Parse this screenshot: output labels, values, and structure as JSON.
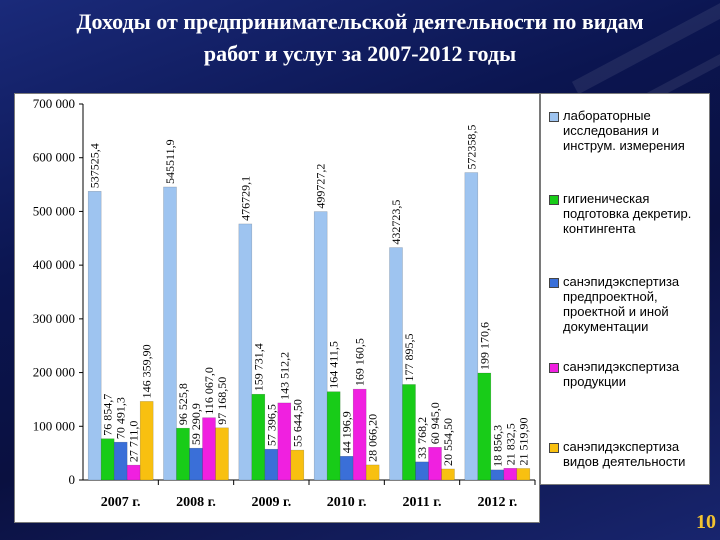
{
  "title_lines": [
    "Доходы от предпринимательской деятельности по видам",
    "работ и услуг за 2007-2012 годы"
  ],
  "page_number": "10",
  "chart_data": {
    "type": "bar",
    "categories": [
      "2007 г.",
      "2008 г.",
      "2009 г.",
      "2010 г.",
      "2011 г.",
      "2012 г."
    ],
    "ylim": [
      0,
      700000
    ],
    "yticks": [
      0,
      100000,
      200000,
      300000,
      400000,
      500000,
      600000,
      700000
    ],
    "ytick_labels": [
      "0",
      "100 000",
      "200 000",
      "300 000",
      "400 000",
      "500 000",
      "600 000",
      "700 000"
    ],
    "grid": false,
    "legend_position": "right",
    "series": [
      {
        "name": "лабораторные исследования и инструм. измерения",
        "color": "#9ec4f0",
        "values": [
          537525.4,
          545511.9,
          476729.1,
          499727.2,
          432723.5,
          572358.5
        ],
        "labels": [
          "537525,4",
          "545511,9",
          "476729,1",
          "499727,2",
          "432723,5",
          "572358,5"
        ]
      },
      {
        "name": "гигиеническая подготовка декретир. контингента",
        "color": "#18cc18",
        "values": [
          76854.7,
          96525.8,
          159731.4,
          164411.5,
          177895.5,
          199170.6
        ],
        "labels": [
          "76 854,7",
          "96 525,8",
          "159 731,4",
          "164 411,5",
          "177 895,5",
          "199 170,6"
        ]
      },
      {
        "name": "санэпидэкспертиза предпроектной, проектной и иной документации",
        "color": "#3a6fd8",
        "values": [
          70491.3,
          59290.9,
          57396.5,
          44196.9,
          33768.2,
          18856.3
        ],
        "labels": [
          "70 491,3",
          "59 290,9",
          "57 396,5",
          "44 196,9",
          "33 768,2",
          "18 856,3"
        ]
      },
      {
        "name": "санэпидэкспертиза продукции",
        "color": "#f020e0",
        "values": [
          27711.0,
          116067.0,
          143512.2,
          169160.5,
          60945.0,
          21832.5
        ],
        "labels": [
          "27 711,0",
          "116 067,0",
          "143 512,2",
          "169 160,5",
          "60 945,0",
          "21 832,5"
        ]
      },
      {
        "name": "санэпидэкспертиза видов деятельности",
        "color": "#f8c010",
        "values": [
          146359.9,
          97168.5,
          55644.5,
          28066.2,
          20554.5,
          21519.9
        ],
        "labels": [
          "146 359,90",
          "97 168,50",
          "55 644,50",
          "28 066,20",
          "20 554,50",
          "21 519,90"
        ]
      }
    ]
  }
}
